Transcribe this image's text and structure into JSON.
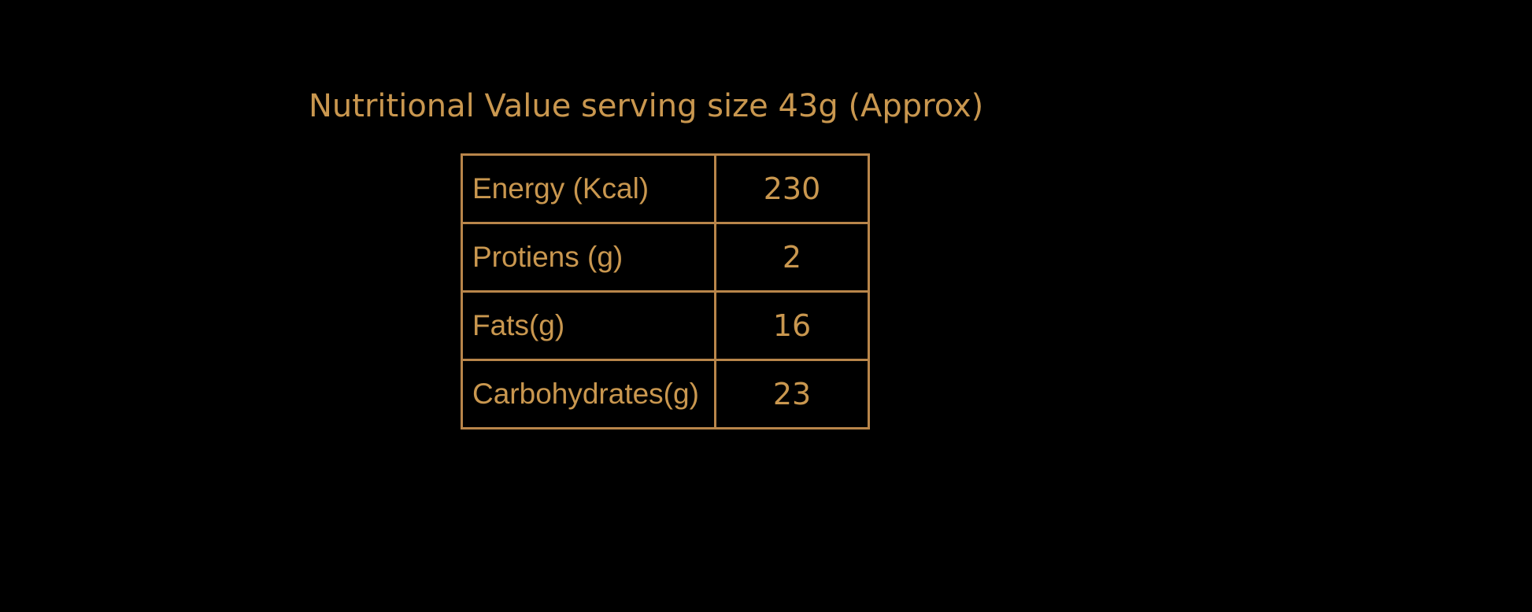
{
  "title": "Nutritional Value serving size 43g (Approx)",
  "table": {
    "rows": [
      [
        "Energy (Kcal)",
        "230"
      ],
      [
        "Protiens (g)",
        "2"
      ],
      [
        "Fats(g)",
        "16"
      ],
      [
        "Carbohydrates(g)",
        "23"
      ]
    ]
  }
}
